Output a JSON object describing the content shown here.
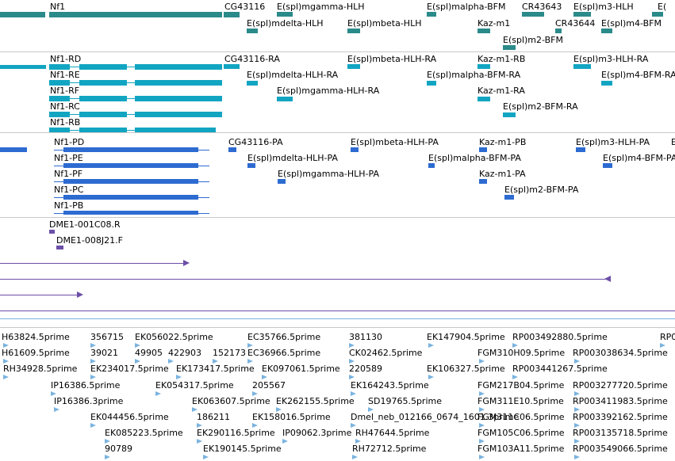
{
  "colors": {
    "gene": "#2b8a8a",
    "rna": "#12a5c2",
    "protein": "#2d6bd1",
    "clone": "#6c4fa8",
    "est": "#7ab3df",
    "separator": "#c8c8c8"
  },
  "genes": [
    {
      "name": "Nf1"
    },
    {
      "name": "CG43116"
    },
    {
      "name": "E(spl)mgamma-HLH"
    },
    {
      "name": "E(spl)malpha-BFM"
    },
    {
      "name": "CR43643"
    },
    {
      "name": "E(spl)m3-HLH"
    },
    {
      "name": "E("
    },
    {
      "name": "E(spl)mdelta-HLH"
    },
    {
      "name": "E(spl)mbeta-HLH"
    },
    {
      "name": "Kaz-m1"
    },
    {
      "name": "CR43644"
    },
    {
      "name": "E(spl)m4-BFM"
    },
    {
      "name": "E(spl)m2-BFM"
    }
  ],
  "transcripts": [
    {
      "name": "Nf1-RD"
    },
    {
      "name": "Nf1-RE"
    },
    {
      "name": "Nf1-RF"
    },
    {
      "name": "Nf1-RC"
    },
    {
      "name": "Nf1-RB"
    },
    {
      "name": "CG43116-RA"
    },
    {
      "name": "E(spl)mdelta-HLH-RA"
    },
    {
      "name": "E(spl)mgamma-HLH-RA"
    },
    {
      "name": "E(spl)mbeta-HLH-RA"
    },
    {
      "name": "E(spl)malpha-BFM-RA"
    },
    {
      "name": "Kaz-m1-RB"
    },
    {
      "name": "Kaz-m1-RA"
    },
    {
      "name": "E(spl)m2-BFM-RA"
    },
    {
      "name": "E(spl)m3-HLH-RA"
    },
    {
      "name": "E(spl)m4-BFM-RA"
    }
  ],
  "proteins": [
    {
      "name": "Nf1-PD"
    },
    {
      "name": "Nf1-PE"
    },
    {
      "name": "Nf1-PF"
    },
    {
      "name": "Nf1-PC"
    },
    {
      "name": "Nf1-PB"
    },
    {
      "name": "CG43116-PA"
    },
    {
      "name": "E(spl)mdelta-HLH-PA"
    },
    {
      "name": "E(spl)mgamma-HLH-PA"
    },
    {
      "name": "E(spl)mbeta-HLH-PA"
    },
    {
      "name": "E(spl)malpha-BFM-PA"
    },
    {
      "name": "Kaz-m1-PB"
    },
    {
      "name": "Kaz-m1-PA"
    },
    {
      "name": "E(spl)m2-BFM-PA"
    },
    {
      "name": "E(spl)m3-HLH-PA"
    },
    {
      "name": "E(spl)m4-BFM-PA"
    },
    {
      "name": "E"
    }
  ],
  "clones": [
    {
      "name": "DME1-001C08.R"
    },
    {
      "name": "DME1-008J21.F"
    }
  ],
  "ests": [
    {
      "name": "H63824.5prime"
    },
    {
      "name": "356715"
    },
    {
      "name": "EK056022.5prime"
    },
    {
      "name": "EC35766.5prime"
    },
    {
      "name": "381130"
    },
    {
      "name": "EK147904.5prime"
    },
    {
      "name": "RP003492880.5prime"
    },
    {
      "name": "RP0"
    },
    {
      "name": "H61609.5prime"
    },
    {
      "name": "39021"
    },
    {
      "name": "49905"
    },
    {
      "name": "422903"
    },
    {
      "name": "152173"
    },
    {
      "name": "EC36966.5prime"
    },
    {
      "name": "CK02462.5prime"
    },
    {
      "name": "FGM310H09.5prime"
    },
    {
      "name": "RP003038634.5prime"
    },
    {
      "name": "RH34928.5prime"
    },
    {
      "name": "EK234017.5prime"
    },
    {
      "name": "EK173417.5prime"
    },
    {
      "name": "EK097061.5prime"
    },
    {
      "name": "220589"
    },
    {
      "name": "EK106327.5prime"
    },
    {
      "name": "RP003441267.5prime"
    },
    {
      "name": "IP16386.5prime"
    },
    {
      "name": "EK054317.5prime"
    },
    {
      "name": "205567"
    },
    {
      "name": "EK164243.5prime"
    },
    {
      "name": "FGM217B04.5prime"
    },
    {
      "name": "RP003277720.5prime"
    },
    {
      "name": "IP16386.3prime"
    },
    {
      "name": "EK063607.5prime"
    },
    {
      "name": "EK262155.5prime"
    },
    {
      "name": "SD19765.5prime"
    },
    {
      "name": "FGM311E10.5prime"
    },
    {
      "name": "RP003411983.5prime"
    },
    {
      "name": "EK044456.5prime"
    },
    {
      "name": "186211"
    },
    {
      "name": "EK158016.5prime"
    },
    {
      "name": "Dmel_neb_012166_0674_1601.3prime"
    },
    {
      "name": "FGM311C06.5prime"
    },
    {
      "name": "RP003392162.5prime"
    },
    {
      "name": "EK085223.5prime"
    },
    {
      "name": "EK290116.5prime"
    },
    {
      "name": "IP09062.3prime"
    },
    {
      "name": "RH47644.5prime"
    },
    {
      "name": "FGM105C06.5prime"
    },
    {
      "name": "RP003135718.5prime"
    },
    {
      "name": "90789"
    },
    {
      "name": "EK190145.5prime"
    },
    {
      "name": "RH72712.5prime"
    },
    {
      "name": "FGM103A11.5prime"
    },
    {
      "name": "RP003549066.5prime"
    }
  ]
}
